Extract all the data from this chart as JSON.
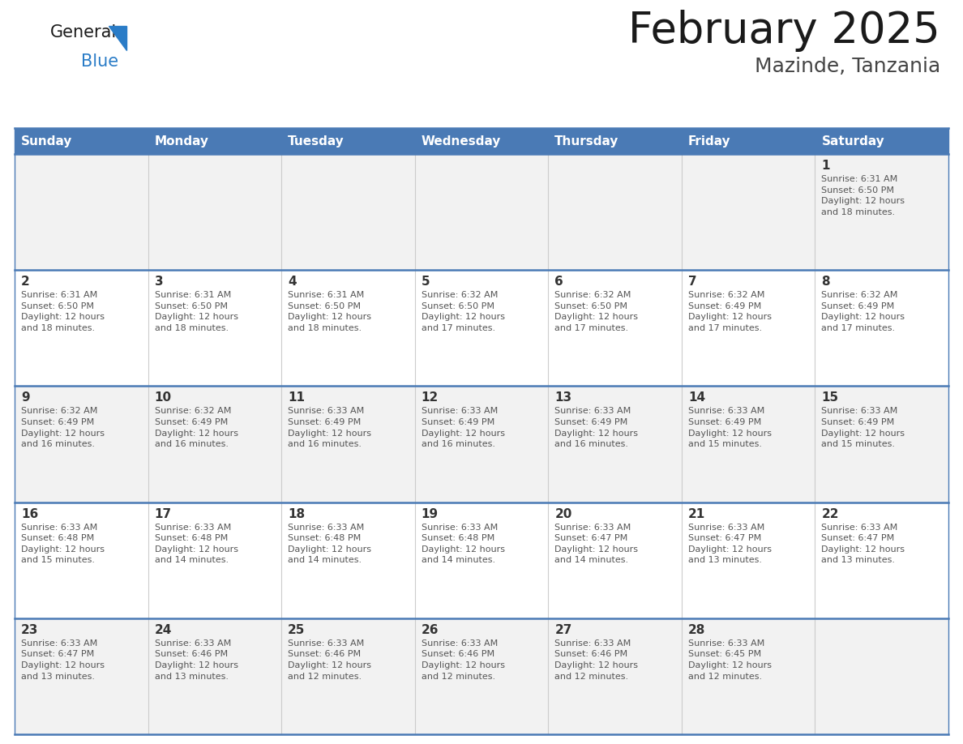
{
  "title": "February 2025",
  "subtitle": "Mazinde, Tanzania",
  "header_bg": "#4a7ab5",
  "header_text_color": "#FFFFFF",
  "row_bg_odd": "#f2f2f2",
  "row_bg_even": "#ffffff",
  "divider_color": "#4a7ab5",
  "cell_border_color": "#c8c8c8",
  "day_number_color": "#333333",
  "info_text_color": "#555555",
  "days_of_week": [
    "Sunday",
    "Monday",
    "Tuesday",
    "Wednesday",
    "Thursday",
    "Friday",
    "Saturday"
  ],
  "weeks": [
    [
      {
        "day": null,
        "info": null
      },
      {
        "day": null,
        "info": null
      },
      {
        "day": null,
        "info": null
      },
      {
        "day": null,
        "info": null
      },
      {
        "day": null,
        "info": null
      },
      {
        "day": null,
        "info": null
      },
      {
        "day": 1,
        "info": "Sunrise: 6:31 AM\nSunset: 6:50 PM\nDaylight: 12 hours\nand 18 minutes."
      }
    ],
    [
      {
        "day": 2,
        "info": "Sunrise: 6:31 AM\nSunset: 6:50 PM\nDaylight: 12 hours\nand 18 minutes."
      },
      {
        "day": 3,
        "info": "Sunrise: 6:31 AM\nSunset: 6:50 PM\nDaylight: 12 hours\nand 18 minutes."
      },
      {
        "day": 4,
        "info": "Sunrise: 6:31 AM\nSunset: 6:50 PM\nDaylight: 12 hours\nand 18 minutes."
      },
      {
        "day": 5,
        "info": "Sunrise: 6:32 AM\nSunset: 6:50 PM\nDaylight: 12 hours\nand 17 minutes."
      },
      {
        "day": 6,
        "info": "Sunrise: 6:32 AM\nSunset: 6:50 PM\nDaylight: 12 hours\nand 17 minutes."
      },
      {
        "day": 7,
        "info": "Sunrise: 6:32 AM\nSunset: 6:49 PM\nDaylight: 12 hours\nand 17 minutes."
      },
      {
        "day": 8,
        "info": "Sunrise: 6:32 AM\nSunset: 6:49 PM\nDaylight: 12 hours\nand 17 minutes."
      }
    ],
    [
      {
        "day": 9,
        "info": "Sunrise: 6:32 AM\nSunset: 6:49 PM\nDaylight: 12 hours\nand 16 minutes."
      },
      {
        "day": 10,
        "info": "Sunrise: 6:32 AM\nSunset: 6:49 PM\nDaylight: 12 hours\nand 16 minutes."
      },
      {
        "day": 11,
        "info": "Sunrise: 6:33 AM\nSunset: 6:49 PM\nDaylight: 12 hours\nand 16 minutes."
      },
      {
        "day": 12,
        "info": "Sunrise: 6:33 AM\nSunset: 6:49 PM\nDaylight: 12 hours\nand 16 minutes."
      },
      {
        "day": 13,
        "info": "Sunrise: 6:33 AM\nSunset: 6:49 PM\nDaylight: 12 hours\nand 16 minutes."
      },
      {
        "day": 14,
        "info": "Sunrise: 6:33 AM\nSunset: 6:49 PM\nDaylight: 12 hours\nand 15 minutes."
      },
      {
        "day": 15,
        "info": "Sunrise: 6:33 AM\nSunset: 6:49 PM\nDaylight: 12 hours\nand 15 minutes."
      }
    ],
    [
      {
        "day": 16,
        "info": "Sunrise: 6:33 AM\nSunset: 6:48 PM\nDaylight: 12 hours\nand 15 minutes."
      },
      {
        "day": 17,
        "info": "Sunrise: 6:33 AM\nSunset: 6:48 PM\nDaylight: 12 hours\nand 14 minutes."
      },
      {
        "day": 18,
        "info": "Sunrise: 6:33 AM\nSunset: 6:48 PM\nDaylight: 12 hours\nand 14 minutes."
      },
      {
        "day": 19,
        "info": "Sunrise: 6:33 AM\nSunset: 6:48 PM\nDaylight: 12 hours\nand 14 minutes."
      },
      {
        "day": 20,
        "info": "Sunrise: 6:33 AM\nSunset: 6:47 PM\nDaylight: 12 hours\nand 14 minutes."
      },
      {
        "day": 21,
        "info": "Sunrise: 6:33 AM\nSunset: 6:47 PM\nDaylight: 12 hours\nand 13 minutes."
      },
      {
        "day": 22,
        "info": "Sunrise: 6:33 AM\nSunset: 6:47 PM\nDaylight: 12 hours\nand 13 minutes."
      }
    ],
    [
      {
        "day": 23,
        "info": "Sunrise: 6:33 AM\nSunset: 6:47 PM\nDaylight: 12 hours\nand 13 minutes."
      },
      {
        "day": 24,
        "info": "Sunrise: 6:33 AM\nSunset: 6:46 PM\nDaylight: 12 hours\nand 13 minutes."
      },
      {
        "day": 25,
        "info": "Sunrise: 6:33 AM\nSunset: 6:46 PM\nDaylight: 12 hours\nand 12 minutes."
      },
      {
        "day": 26,
        "info": "Sunrise: 6:33 AM\nSunset: 6:46 PM\nDaylight: 12 hours\nand 12 minutes."
      },
      {
        "day": 27,
        "info": "Sunrise: 6:33 AM\nSunset: 6:46 PM\nDaylight: 12 hours\nand 12 minutes."
      },
      {
        "day": 28,
        "info": "Sunrise: 6:33 AM\nSunset: 6:45 PM\nDaylight: 12 hours\nand 12 minutes."
      },
      {
        "day": null,
        "info": null
      }
    ]
  ],
  "logo_general_color": "#1a1a1a",
  "logo_blue_color": "#2A7CC7",
  "logo_triangle_color": "#2A7CC7",
  "title_fontsize": 38,
  "subtitle_fontsize": 18,
  "header_fontsize": 11,
  "day_num_fontsize": 11,
  "info_fontsize": 8
}
